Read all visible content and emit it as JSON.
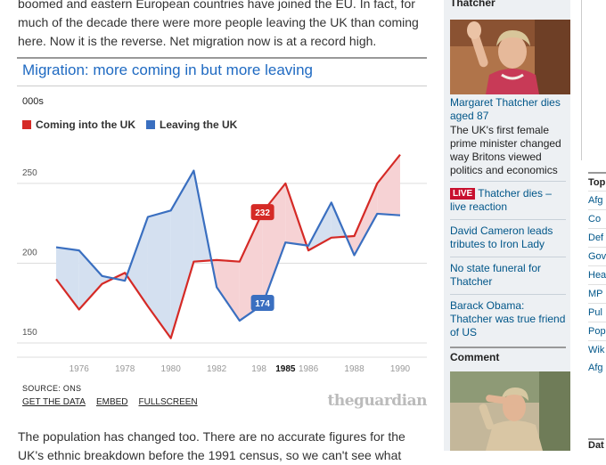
{
  "article": {
    "intro": "boomed and eastern European countries have joined the EU. In fact, for much of the decade there were more people leaving the UK than coming here. Now it is the reverse. Net migration now is at a record high.",
    "outro": "The population has changed too. There are no accurate figures for the UK's ethnic breakdown before the 1991 census, so we can't see what"
  },
  "chart": {
    "title": "Migration: more coming in but more leaving",
    "unit": "000s",
    "legend_in": "Coming into the UK",
    "legend_out": "Leaving the UK",
    "source": "SOURCE: ONS",
    "links": [
      "GET THE DATA",
      "EMBED",
      "FULLSCREEN"
    ],
    "brand": "theguardian",
    "colors": {
      "in": "#d52a26",
      "out": "#3a6fc0",
      "gap_in": "#f6d2d4",
      "gap_out": "#d4e0f0"
    }
  },
  "chart_data": {
    "type": "line",
    "title": "Migration: more coming in but more leaving",
    "ylabel": "000s",
    "xlabel": "",
    "ylim": [
      145,
      265
    ],
    "yticks": [
      150,
      200,
      250
    ],
    "xticks": [
      "1976",
      "1978",
      "1980",
      "1982",
      "198",
      "1985",
      "1986",
      "1988",
      "1990"
    ],
    "highlight_year": "1985",
    "grid": true,
    "legend": "top-left",
    "x": [
      1975,
      1976,
      1977,
      1978,
      1979,
      1980,
      1981,
      1982,
      1983,
      1984,
      1985,
      1986,
      1987,
      1988,
      1989,
      1990
    ],
    "series": [
      {
        "name": "Coming into the UK",
        "values": [
          190,
          171,
          187,
          194,
          173,
          153,
          201,
          202,
          201,
          232,
          250,
          208,
          216,
          217,
          250,
          268
        ]
      },
      {
        "name": "Leaving the UK",
        "values": [
          210,
          208,
          192,
          189,
          229,
          233,
          258,
          185,
          164,
          174,
          213,
          211,
          238,
          205,
          231,
          230
        ]
      }
    ],
    "annotations": [
      {
        "series": "Coming into the UK",
        "x": 1984,
        "label": "232"
      },
      {
        "series": "Leaving the UK",
        "x": 1984,
        "label": "174"
      }
    ]
  },
  "sidebar": {
    "section": "Thatcher",
    "stories": [
      {
        "title": "Margaret Thatcher dies aged 87",
        "sub": "The UK's first female prime minister changed way Britons viewed politics and economics"
      },
      {
        "badge": "LIVE",
        "title": "Thatcher dies – live reaction"
      },
      {
        "title": "David Cameron leads tributes to Iron Lady"
      },
      {
        "title": "No state funeral for Thatcher"
      },
      {
        "title": "Barack Obama: Thatcher was true friend of US"
      }
    ],
    "comment_head": "Comment"
  },
  "far_right": {
    "head": "Top",
    "items": [
      "Afg",
      "Co",
      "Def",
      "Gov",
      "Hea",
      "MP",
      "Pul",
      "Pop",
      "Wik",
      "Afg"
    ],
    "bottom": "Dat"
  }
}
